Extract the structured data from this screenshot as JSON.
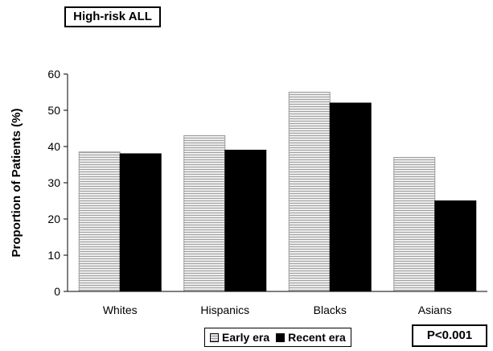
{
  "title_box": "High-risk ALL",
  "p_value": "P<0.001",
  "colors": {
    "early": "#e6e6e6",
    "recent": "#000000",
    "axis": "#000000"
  },
  "chart_data": {
    "type": "bar",
    "title": "High-risk ALL",
    "ylabel": "Proportion of Patients (%)",
    "xlabel": "",
    "categories": [
      "Whites",
      "Hispanics",
      "Blacks",
      "Asians"
    ],
    "ylim": [
      0,
      60
    ],
    "yticks": [
      0,
      10,
      20,
      30,
      40,
      50,
      60
    ],
    "grid": false,
    "legend_position": "bottom",
    "series": [
      {
        "name": "Early era",
        "values": [
          38.5,
          43,
          55,
          37
        ]
      },
      {
        "name": "Recent era",
        "values": [
          38,
          39,
          52,
          25
        ]
      }
    ]
  }
}
